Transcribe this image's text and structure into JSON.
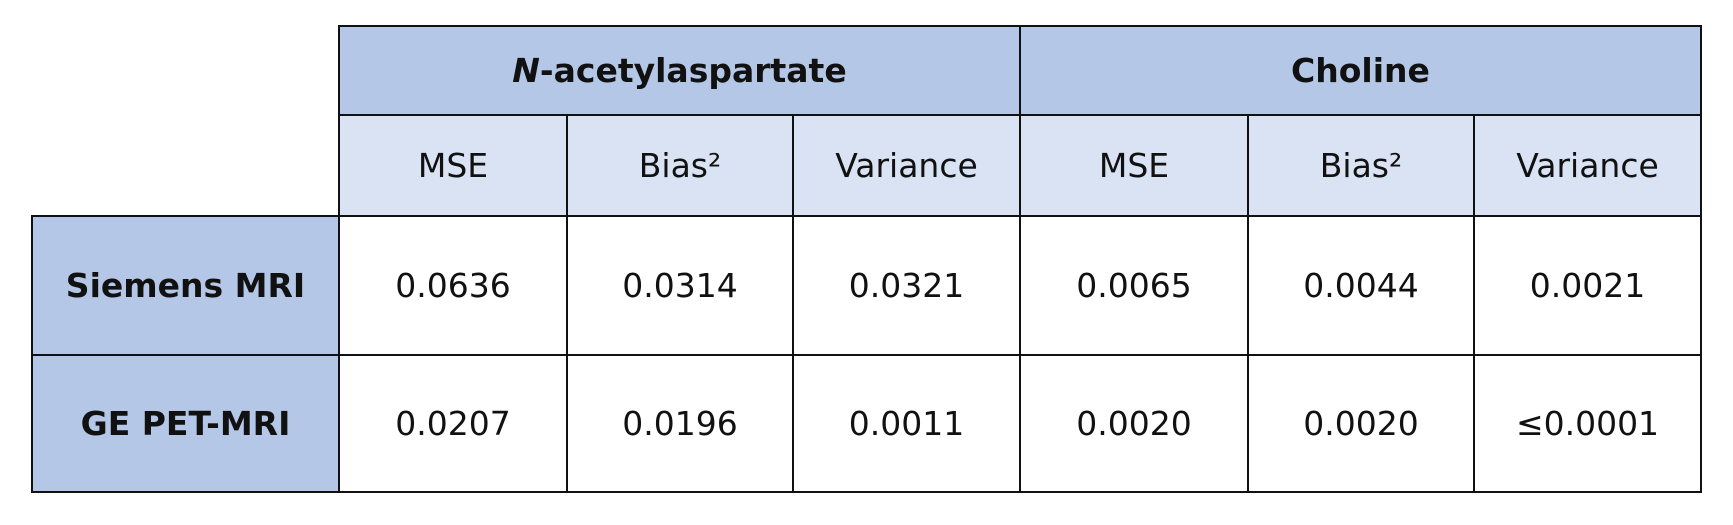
{
  "table": {
    "groups": [
      {
        "italic": "N",
        "name": "-acetylaspartate"
      },
      {
        "name": "Choline"
      }
    ],
    "columns": [
      "MSE",
      "Bias²",
      "Variance",
      "MSE",
      "Bias²",
      "Variance"
    ],
    "rows": [
      {
        "label": "Siemens MRI",
        "values": [
          "0.0636",
          "0.0314",
          "0.0321",
          "0.0065",
          "0.0044",
          "0.0021"
        ]
      },
      {
        "label": "GE PET-MRI",
        "values": [
          "0.0207",
          "0.0196",
          "0.0011",
          "0.0020",
          "0.0020",
          "≤0.0001"
        ]
      }
    ]
  }
}
